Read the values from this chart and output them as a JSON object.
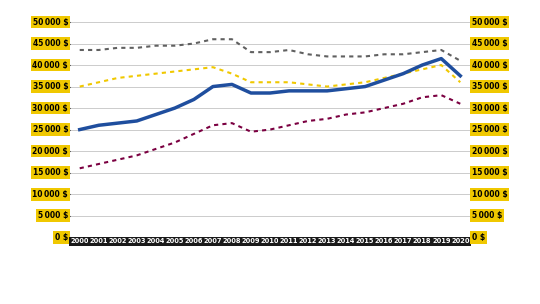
{
  "years": [
    2000,
    2001,
    2002,
    2003,
    2004,
    2005,
    2006,
    2007,
    2008,
    2009,
    2010,
    2011,
    2012,
    2013,
    2014,
    2015,
    2016,
    2017,
    2018,
    2019,
    2020
  ],
  "ceska_republika": [
    25000,
    26000,
    26500,
    27000,
    28500,
    30000,
    32000,
    35000,
    35500,
    33500,
    33500,
    34000,
    34000,
    34000,
    34500,
    35000,
    36500,
    38000,
    40000,
    41500,
    37500
  ],
  "slovensko": [
    16000,
    17000,
    18000,
    19000,
    20500,
    22000,
    24000,
    26000,
    26500,
    24500,
    25000,
    26000,
    27000,
    27500,
    28500,
    29000,
    30000,
    31000,
    32500,
    33000,
    31000
  ],
  "italie": [
    43500,
    43500,
    44000,
    44000,
    44500,
    44500,
    45000,
    46000,
    46000,
    43000,
    43000,
    43500,
    42500,
    42000,
    42000,
    42000,
    42500,
    42500,
    43000,
    43500,
    41000
  ],
  "spanelsko": [
    35000,
    36000,
    37000,
    37500,
    38000,
    38500,
    39000,
    39500,
    38000,
    36000,
    36000,
    36000,
    35500,
    35000,
    35500,
    36000,
    37000,
    38000,
    39000,
    40000,
    36000
  ],
  "ceska_color": "#1f4e9e",
  "slovensko_color": "#7b0041",
  "italie_color": "#606060",
  "spanelsko_color": "#f0c800",
  "bg_color": "#ffffff",
  "grid_color": "#cccccc",
  "label_bg": "#f0c800",
  "label_text_dark": "#000000",
  "xtick_bg": "#1a1a1a",
  "xtick_text": "#ffffff",
  "yticks": [
    0,
    5000,
    10000,
    15000,
    20000,
    25000,
    30000,
    35000,
    40000,
    45000,
    50000
  ],
  "ylim_max": 53000,
  "xlim_min": 1999.5,
  "xlim_max": 2020.5
}
